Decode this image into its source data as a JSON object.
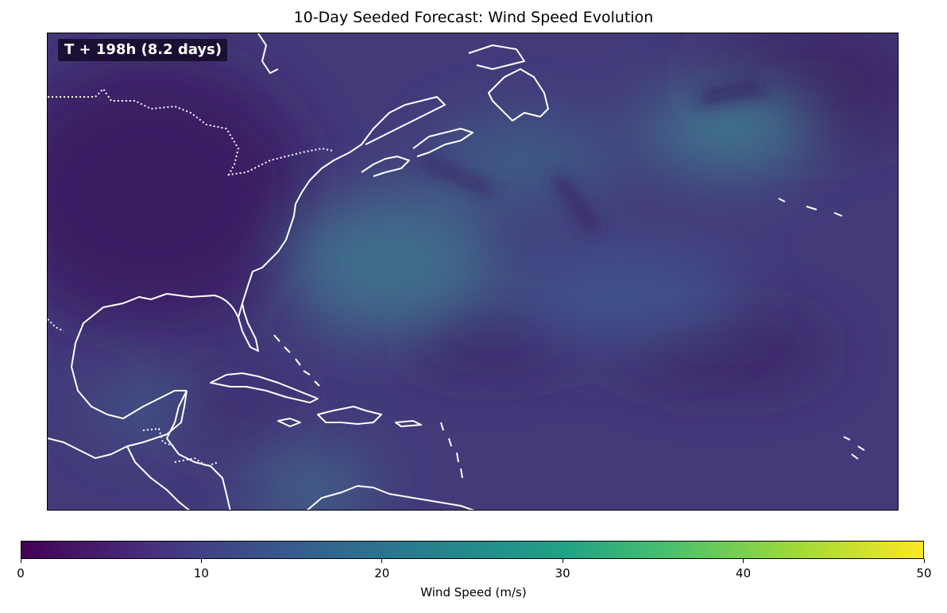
{
  "title": "10-Day Seeded Forecast: Wind Speed Evolution",
  "time_label": "T + 198h (8.2 days)",
  "colorbar": {
    "label": "Wind Speed (m/s)",
    "ticks": [
      "0",
      "10",
      "20",
      "30",
      "40",
      "50"
    ],
    "range": [
      0,
      50
    ],
    "colormap": "viridis"
  },
  "colors": {
    "background_low": "#3e2a6b",
    "coastline": "#ffffff"
  }
}
